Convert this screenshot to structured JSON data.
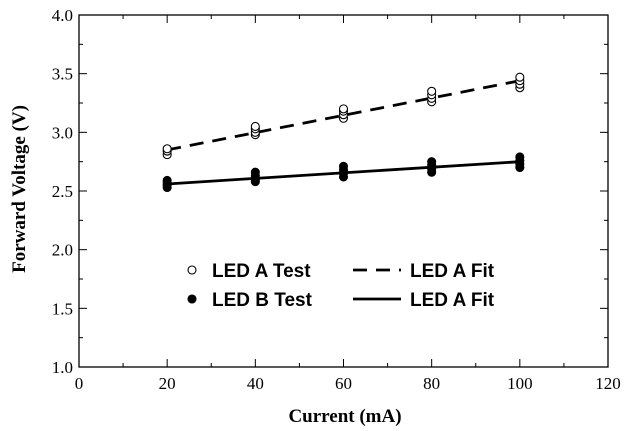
{
  "chart_data": {
    "type": "scatter",
    "xlabel": "Current (mA)",
    "ylabel": "Forward Voltage (V)",
    "xlim": [
      0,
      120
    ],
    "ylim": [
      1.0,
      4.0
    ],
    "xticks": [
      0,
      20,
      40,
      60,
      80,
      100,
      120
    ],
    "yticks": [
      1.0,
      1.5,
      2.0,
      2.5,
      3.0,
      3.5,
      4.0
    ],
    "xtick_labels": [
      "0",
      "20",
      "40",
      "60",
      "80",
      "100",
      "120"
    ],
    "ytick_labels": [
      "1.0",
      "1.5",
      "2.0",
      "2.5",
      "3.0",
      "3.5",
      "4.0"
    ],
    "grid": false,
    "legend_position": "center-left",
    "series": [
      {
        "name": "LED A Test",
        "kind": "scatter",
        "marker": "open-circle",
        "color": "#000000",
        "points": [
          {
            "x": 20,
            "y": 2.81
          },
          {
            "x": 20,
            "y": 2.84
          },
          {
            "x": 20,
            "y": 2.86
          },
          {
            "x": 40,
            "y": 2.98
          },
          {
            "x": 40,
            "y": 3.0
          },
          {
            "x": 40,
            "y": 3.03
          },
          {
            "x": 40,
            "y": 3.05
          },
          {
            "x": 60,
            "y": 3.12
          },
          {
            "x": 60,
            "y": 3.15
          },
          {
            "x": 60,
            "y": 3.18
          },
          {
            "x": 60,
            "y": 3.2
          },
          {
            "x": 80,
            "y": 3.26
          },
          {
            "x": 80,
            "y": 3.29
          },
          {
            "x": 80,
            "y": 3.32
          },
          {
            "x": 80,
            "y": 3.35
          },
          {
            "x": 100,
            "y": 3.38
          },
          {
            "x": 100,
            "y": 3.41
          },
          {
            "x": 100,
            "y": 3.44
          },
          {
            "x": 100,
            "y": 3.47
          }
        ]
      },
      {
        "name": "LED A Fit",
        "kind": "line",
        "dash": "dashed",
        "color": "#000000",
        "points": [
          {
            "x": 20,
            "y": 2.85
          },
          {
            "x": 100,
            "y": 3.44
          }
        ]
      },
      {
        "name": "LED B Test",
        "kind": "scatter",
        "marker": "filled-circle",
        "color": "#000000",
        "points": [
          {
            "x": 20,
            "y": 2.53
          },
          {
            "x": 20,
            "y": 2.55
          },
          {
            "x": 20,
            "y": 2.57
          },
          {
            "x": 20,
            "y": 2.59
          },
          {
            "x": 40,
            "y": 2.58
          },
          {
            "x": 40,
            "y": 2.6
          },
          {
            "x": 40,
            "y": 2.63
          },
          {
            "x": 40,
            "y": 2.66
          },
          {
            "x": 60,
            "y": 2.62
          },
          {
            "x": 60,
            "y": 2.65
          },
          {
            "x": 60,
            "y": 2.68
          },
          {
            "x": 60,
            "y": 2.71
          },
          {
            "x": 80,
            "y": 2.66
          },
          {
            "x": 80,
            "y": 2.69
          },
          {
            "x": 80,
            "y": 2.72
          },
          {
            "x": 80,
            "y": 2.75
          },
          {
            "x": 100,
            "y": 2.7
          },
          {
            "x": 100,
            "y": 2.73
          },
          {
            "x": 100,
            "y": 2.76
          },
          {
            "x": 100,
            "y": 2.79
          }
        ]
      },
      {
        "name": "LED A Fit",
        "kind": "line",
        "dash": "solid",
        "color": "#000000",
        "points": [
          {
            "x": 20,
            "y": 2.56
          },
          {
            "x": 100,
            "y": 2.75
          }
        ]
      }
    ]
  }
}
